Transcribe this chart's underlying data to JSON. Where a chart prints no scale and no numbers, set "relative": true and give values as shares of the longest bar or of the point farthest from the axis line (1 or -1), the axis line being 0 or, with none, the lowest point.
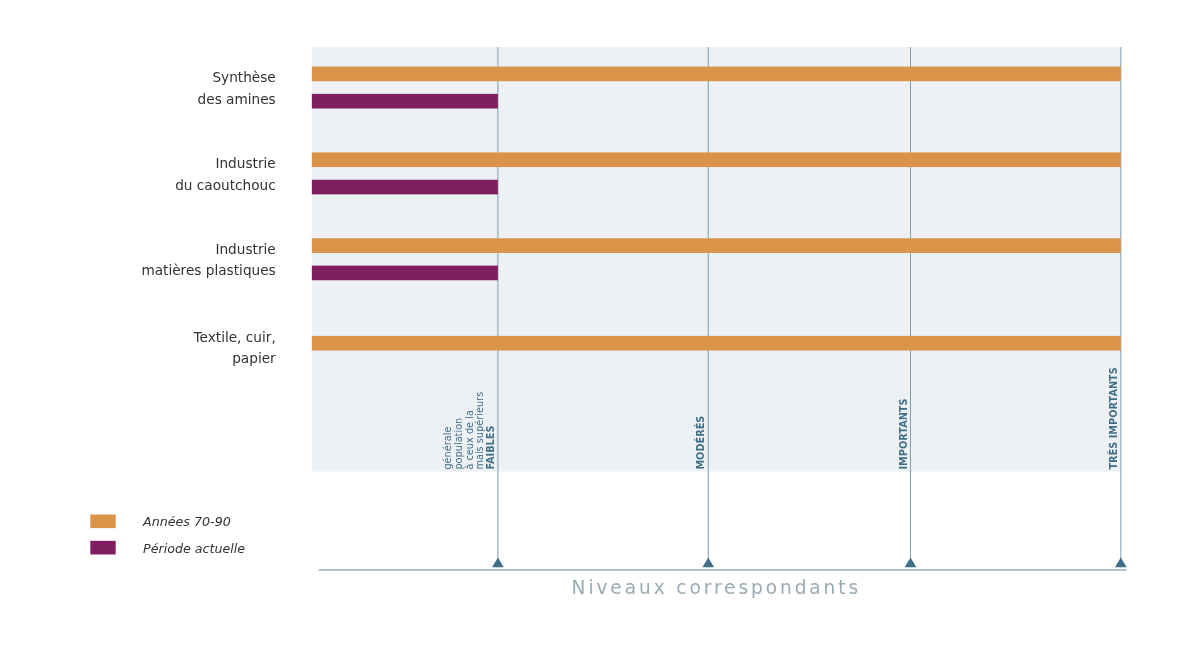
{
  "chart_data": {
    "type": "bar",
    "orientation": "horizontal",
    "relative": true,
    "categories": [
      "Synthèse\ndes amines",
      "Industrie\ndu caoutchouc",
      "Industrie\nmatières plastiques",
      "Textile, cuir,\npapier"
    ],
    "series": [
      {
        "name": "Années 70-90",
        "color": "#d9944a",
        "values": [
          1,
          1,
          1,
          1
        ]
      },
      {
        "name": "Période actuelle",
        "color": "#7f1f62",
        "values": [
          0.23,
          0.23,
          0.23,
          null
        ]
      }
    ],
    "ref_lines": [
      {
        "axis": "x",
        "value": 0.23,
        "label": "FAIBLES\nmais supérieurs\nà ceux de la\npopulation\ngénérale"
      },
      {
        "axis": "x",
        "value": 0.49,
        "label": "MODÉRÉS"
      },
      {
        "axis": "x",
        "value": 0.74,
        "label": "IMPORTANTS"
      },
      {
        "axis": "x",
        "value": 1,
        "label": "TRÈS IMPORTANTS"
      }
    ],
    "annotations": [
      "Niveaux correspondants"
    ],
    "legend": "bottom left"
  }
}
